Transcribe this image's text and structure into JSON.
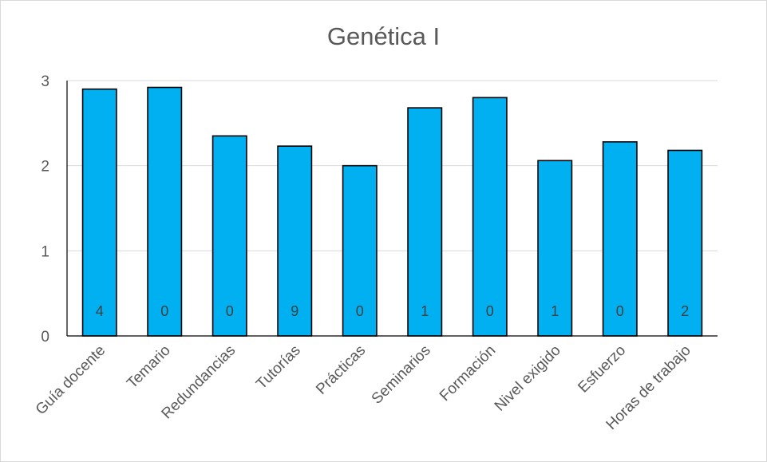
{
  "chart_data": {
    "type": "bar",
    "title": "Genética I",
    "xlabel": "",
    "ylabel": "",
    "ylim": [
      0,
      3
    ],
    "yticks": [
      "0",
      "1",
      "2",
      "3"
    ],
    "grid": true,
    "bar_color": "#00b0f0",
    "categories": [
      "Guía docente",
      "Temario",
      "Redundancias",
      "Tutorías",
      "Prácticas",
      "Seminarios",
      "Formación",
      "Nivel exigido",
      "Esfuerzo",
      "Horas de trabajo"
    ],
    "values": [
      2.9,
      2.92,
      2.35,
      2.23,
      2.0,
      2.68,
      2.8,
      2.06,
      2.28,
      2.18
    ],
    "data_labels": [
      "4",
      "0",
      "0",
      "9",
      "0",
      "1",
      "0",
      "1",
      "0",
      "2"
    ]
  }
}
